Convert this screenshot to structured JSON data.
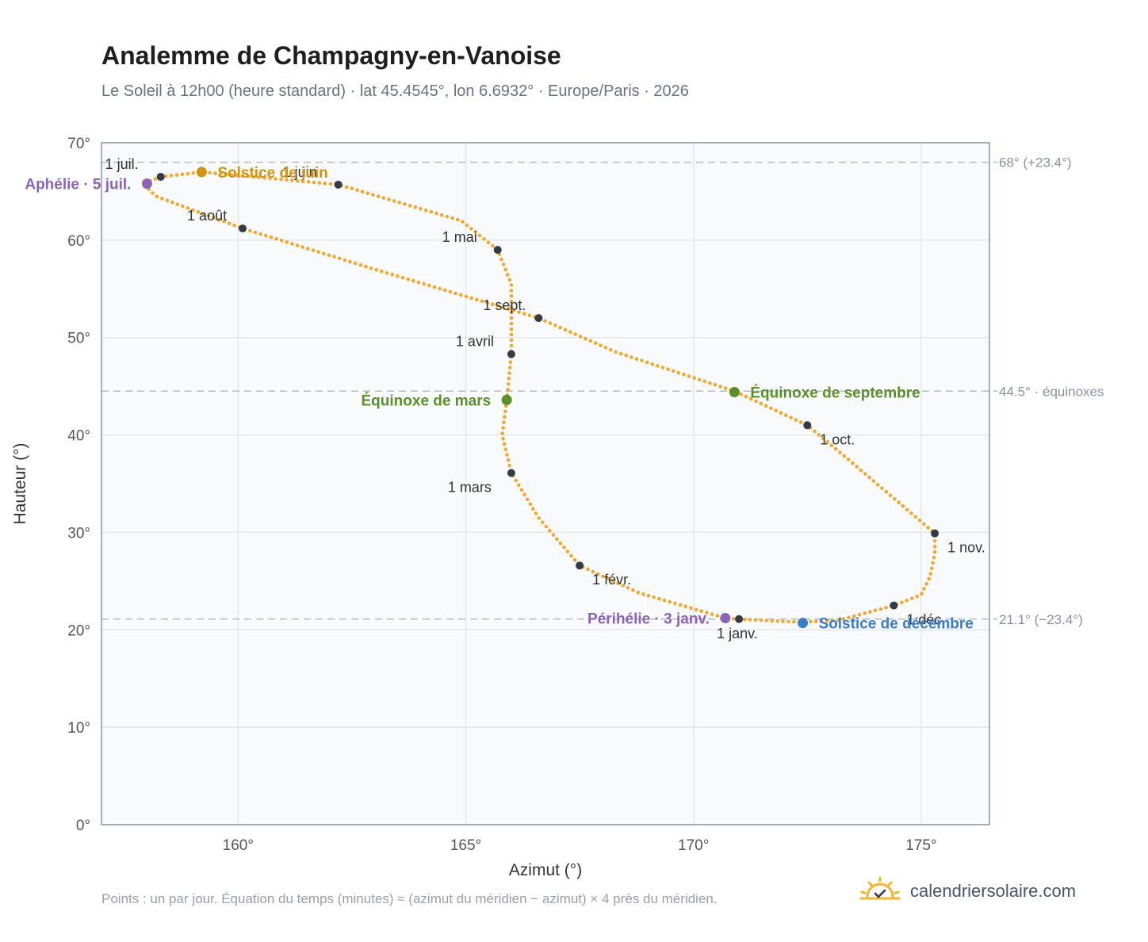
{
  "header": {
    "title": "Analemme de Champagny-en-Vanoise",
    "subtitle": "Le Soleil à 12h00 (heure standard) · lat 45.4545°, lon 6.6932° · Europe/Paris · 2026"
  },
  "footer": {
    "note": "Points : un par jour. Équation du temps (minutes) ≈ (azimut du méridien − azimut) × 4 près du méridien.",
    "brand": "calendriersolaire.com"
  },
  "colors": {
    "curve": "#f0a830",
    "month_dot": "#333b47",
    "solstice_june": "#d4930f",
    "solstice_december": "#3d7cc9",
    "equinox": "#5a8f29",
    "apsis": "#8e63b5",
    "plot_bg": "#f8fafc",
    "grid": "#e3e8ee",
    "frame": "#8a96a3",
    "reference_line": "#b3bcc6"
  },
  "chart_data": {
    "type": "scatter",
    "xlabel": "Azimut (°)",
    "ylabel": "Hauteur (°)",
    "xlim": [
      157.0,
      176.5
    ],
    "ylim": [
      0,
      70
    ],
    "x_ticks": [
      "160°",
      "165°",
      "170°",
      "175°"
    ],
    "x_tick_values": [
      160,
      165,
      170,
      175
    ],
    "y_ticks": [
      "0°",
      "10°",
      "20°",
      "30°",
      "40°",
      "50°",
      "60°",
      "70°"
    ],
    "y_tick_values": [
      0,
      10,
      20,
      30,
      40,
      50,
      60,
      70
    ],
    "grid": true,
    "reference_lines": [
      {
        "y": 68.0,
        "label": "68° (+23.4°)"
      },
      {
        "y": 44.5,
        "label": "44.5° · équinoxes"
      },
      {
        "y": 21.1,
        "label": "21.1° (−23.4°)"
      }
    ],
    "series": [
      {
        "points": [
          [
            171.0,
            21.1
          ],
          [
            172.0,
            20.85
          ],
          [
            172.4,
            20.8
          ],
          [
            173.2,
            21.0
          ],
          [
            174.4,
            22.5
          ],
          [
            175.0,
            23.6
          ],
          [
            175.2,
            25.5
          ],
          [
            175.3,
            27.9
          ],
          [
            175.3,
            29.9
          ],
          [
            174.4,
            33.5
          ],
          [
            173.4,
            37.5
          ],
          [
            172.5,
            41.0
          ],
          [
            170.9,
            44.5
          ],
          [
            168.3,
            48.5
          ],
          [
            166.6,
            52.0
          ],
          [
            163.0,
            57.0
          ],
          [
            160.1,
            61.2
          ],
          [
            158.2,
            64.5
          ],
          [
            157.9,
            65.8
          ],
          [
            158.3,
            66.5
          ],
          [
            159.2,
            67.0
          ],
          [
            162.2,
            65.7
          ],
          [
            164.9,
            62.0
          ],
          [
            165.7,
            59.0
          ],
          [
            166.0,
            55.5
          ],
          [
            166.0,
            48.3
          ],
          [
            165.9,
            43.6
          ],
          [
            165.8,
            40.0
          ],
          [
            166.0,
            36.1
          ],
          [
            166.6,
            31.5
          ],
          [
            167.5,
            26.6
          ],
          [
            168.8,
            23.8
          ],
          [
            170.7,
            21.2
          ],
          [
            171.0,
            21.1
          ]
        ]
      }
    ],
    "month_markers": [
      {
        "label": "1 janv.",
        "x": 171.0,
        "y": 21.1,
        "pos": "below"
      },
      {
        "label": "1 févr.",
        "x": 167.5,
        "y": 26.6,
        "pos": "belowright"
      },
      {
        "label": "1 mars",
        "x": 166.0,
        "y": 36.1,
        "pos": "belowleft"
      },
      {
        "label": "1 avril",
        "x": 166.0,
        "y": 48.3,
        "pos": "aboveleft"
      },
      {
        "label": "1 mai",
        "x": 165.7,
        "y": 59.0,
        "pos": "aboveleft"
      },
      {
        "label": "1 juin",
        "x": 162.2,
        "y": 65.7,
        "pos": "aboveleft"
      },
      {
        "label": "1 juil.",
        "x": 158.3,
        "y": 66.5,
        "pos": "aboveleft"
      },
      {
        "label": "1 août",
        "x": 160.1,
        "y": 61.2,
        "pos": "aboveleft"
      },
      {
        "label": "1 sept.",
        "x": 166.6,
        "y": 52.0,
        "pos": "aboveleft"
      },
      {
        "label": "1 oct.",
        "x": 172.5,
        "y": 41.0,
        "pos": "belowright"
      },
      {
        "label": "1 nov.",
        "x": 175.3,
        "y": 29.9,
        "pos": "belowright"
      },
      {
        "label": "1 déc.",
        "x": 174.4,
        "y": 22.5,
        "pos": "belowright"
      }
    ],
    "events": [
      {
        "label": "Solstice de juin",
        "x": 159.2,
        "y": 67.0,
        "color_key": "solstice_june",
        "side": "right"
      },
      {
        "label": "Équinoxe de mars",
        "x": 165.9,
        "y": 43.6,
        "color_key": "equinox",
        "side": "left"
      },
      {
        "label": "Équinoxe de septembre",
        "x": 170.9,
        "y": 44.4,
        "color_key": "equinox",
        "side": "right"
      },
      {
        "label": "Solstice de décembre",
        "x": 172.4,
        "y": 20.7,
        "color_key": "solstice_december",
        "side": "right"
      },
      {
        "label": "Aphélie · 5 juil.",
        "x": 158.0,
        "y": 65.8,
        "color_key": "apsis",
        "side": "left"
      },
      {
        "label": "Périhélie · 3 janv.",
        "x": 170.7,
        "y": 21.2,
        "color_key": "apsis",
        "side": "left"
      }
    ]
  }
}
